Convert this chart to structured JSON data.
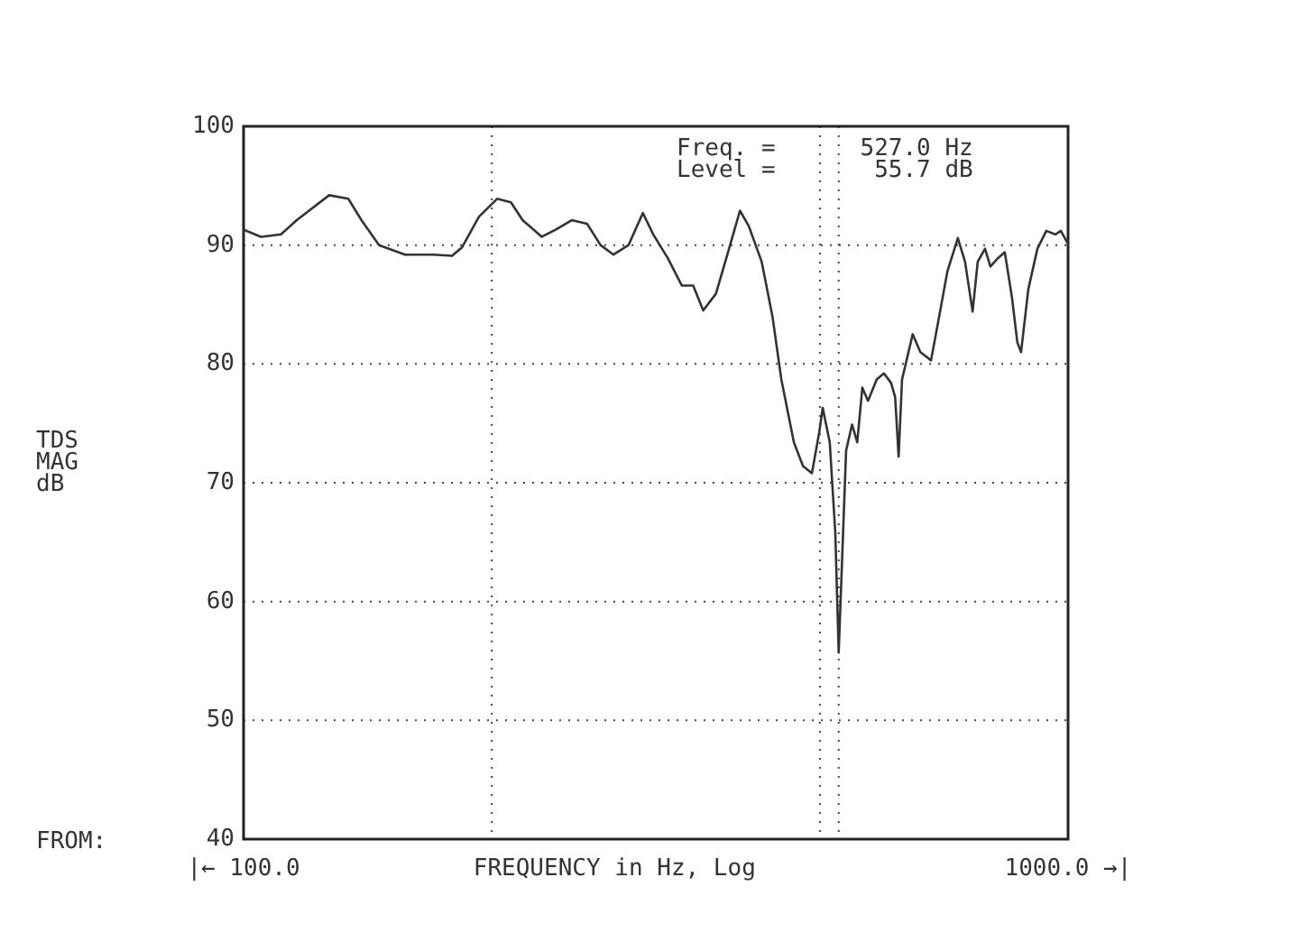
{
  "chart_data": {
    "type": "line",
    "xlabel": "FREQUENCY in Hz, Log",
    "ylabel": "TDS\nMAG\ndB",
    "annotations": [
      "Freq. =      527.0 Hz",
      "Level =       55.7 dB",
      "FROM:"
    ],
    "log": "x",
    "xlim": [
      100,
      1000
    ],
    "ylim": [
      40,
      100
    ],
    "xticks": [
      {
        "value": 100,
        "label": "|← 100.0"
      },
      {
        "value": 200,
        "label": null
      },
      {
        "value": 500,
        "label": null
      },
      {
        "value": 1000,
        "label": "1000.0 →|"
      }
    ],
    "yticks": [
      40,
      50,
      60,
      70,
      80,
      90,
      100
    ],
    "grid": true,
    "marker": "none",
    "ref_lines": [
      {
        "axis": "x",
        "value": 527,
        "label": null,
        "line_style": "dotted"
      }
    ],
    "series": [
      {
        "color": "#333333",
        "x": [
          100,
          105,
          111,
          116,
          127,
          134,
          139,
          146,
          157,
          170,
          179,
          184,
          193,
          203,
          211,
          218,
          230,
          239,
          250,
          261,
          271,
          281,
          293,
          305,
          314,
          327,
          340,
          351,
          361,
          374,
          388,
          400,
          410,
          425,
          438,
          449,
          465,
          477,
          489,
          499,
          504,
          514,
          522,
          527,
          533,
          538,
          547,
          555,
          563,
          572,
          586,
          598,
          610,
          617,
          623,
          629,
          648,
          662,
          682,
          696,
          714,
          735,
          750,
          766,
          777,
          793,
          805,
          822,
          838,
          855,
          868,
          877,
          895,
          918,
          941,
          965,
          980,
          1000
        ],
        "values": [
          91.3,
          90.7,
          90.9,
          92.1,
          94.2,
          93.9,
          92.1,
          90.0,
          89.2,
          89.2,
          89.1,
          89.8,
          92.4,
          93.9,
          93.6,
          92.1,
          90.7,
          91.3,
          92.1,
          91.8,
          90.0,
          89.2,
          90.0,
          92.7,
          90.9,
          88.9,
          86.6,
          86.6,
          84.5,
          85.9,
          89.7,
          92.9,
          91.6,
          88.6,
          84.0,
          78.7,
          73.4,
          71.4,
          70.8,
          74.2,
          76.3,
          73.4,
          65.8,
          55.7,
          65.0,
          72.7,
          74.9,
          73.4,
          78.0,
          76.9,
          78.7,
          79.2,
          78.4,
          77.2,
          72.2,
          78.7,
          82.5,
          81.0,
          80.3,
          83.6,
          87.8,
          90.6,
          88.6,
          84.4,
          88.6,
          89.7,
          88.2,
          88.9,
          89.4,
          85.6,
          81.8,
          81.0,
          86.3,
          89.7,
          91.2,
          90.9,
          91.2,
          90.1
        ]
      }
    ]
  }
}
